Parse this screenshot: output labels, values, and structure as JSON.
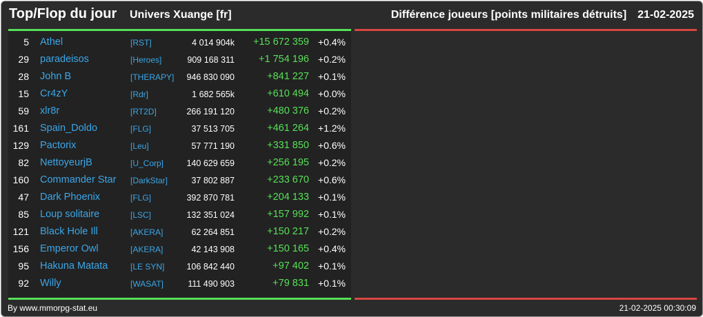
{
  "header": {
    "title": "Top/Flop du jour",
    "universe": "Univers Xuange [fr]",
    "metric": "Différence joueurs [points militaires détruits]",
    "date": "21-02-2025"
  },
  "colors": {
    "positive": "#57e057",
    "negative": "#d9473f",
    "link": "#3ba7e8",
    "background": "#2b2b2b"
  },
  "rows": [
    {
      "rank": "5",
      "name": "Athel",
      "alliance": "[RST]",
      "points": "4 014 904k",
      "diff": "+15 672 359",
      "pct": "+0.4%"
    },
    {
      "rank": "29",
      "name": "paradeisos",
      "alliance": "[Heroes]",
      "points": "909 168 311",
      "diff": "+1 754 196",
      "pct": "+0.2%"
    },
    {
      "rank": "28",
      "name": "John B",
      "alliance": "[THERAPY]",
      "points": "946 830 090",
      "diff": "+841 227",
      "pct": "+0.1%"
    },
    {
      "rank": "15",
      "name": "Cr4zY",
      "alliance": "[Rdr]",
      "points": "1 682 565k",
      "diff": "+610 494",
      "pct": "+0.0%"
    },
    {
      "rank": "59",
      "name": "xlr8r",
      "alliance": "[RT2D]",
      "points": "266 191 120",
      "diff": "+480 376",
      "pct": "+0.2%"
    },
    {
      "rank": "161",
      "name": "Spain_Doldo",
      "alliance": "[FLG]",
      "points": "37 513 705",
      "diff": "+461 264",
      "pct": "+1.2%"
    },
    {
      "rank": "129",
      "name": "Pactorix",
      "alliance": "[Leu]",
      "points": "57 771 190",
      "diff": "+331 850",
      "pct": "+0.6%"
    },
    {
      "rank": "82",
      "name": "NettoyeurjB",
      "alliance": "[U_Corp]",
      "points": "140 629 659",
      "diff": "+256 195",
      "pct": "+0.2%"
    },
    {
      "rank": "160",
      "name": "Commander Star",
      "alliance": "[DarkStar]",
      "points": "37 802 887",
      "diff": "+233 670",
      "pct": "+0.6%"
    },
    {
      "rank": "47",
      "name": "Dark Phoenix",
      "alliance": "[FLG]",
      "points": "392 870 781",
      "diff": "+204 133",
      "pct": "+0.1%"
    },
    {
      "rank": "85",
      "name": "Loup solitaire",
      "alliance": "[LSC]",
      "points": "132 351 024",
      "diff": "+157 992",
      "pct": "+0.1%"
    },
    {
      "rank": "121",
      "name": "Black Hole Ill",
      "alliance": "[AKERA]",
      "points": "62 264 851",
      "diff": "+150 217",
      "pct": "+0.2%"
    },
    {
      "rank": "156",
      "name": "Emperor Owl",
      "alliance": "[AKERA]",
      "points": "42 143 908",
      "diff": "+150 165",
      "pct": "+0.4%"
    },
    {
      "rank": "95",
      "name": "Hakuna Matata",
      "alliance": "[LE SYN]",
      "points": "106 842 440",
      "diff": "+97 402",
      "pct": "+0.1%"
    },
    {
      "rank": "92",
      "name": "Willy",
      "alliance": "[WASAT]",
      "points": "111 490 903",
      "diff": "+79 831",
      "pct": "+0.1%"
    }
  ],
  "footer": {
    "credit": "By www.mmorpg-stat.eu",
    "timestamp": "21-02-2025 00:30:09"
  }
}
